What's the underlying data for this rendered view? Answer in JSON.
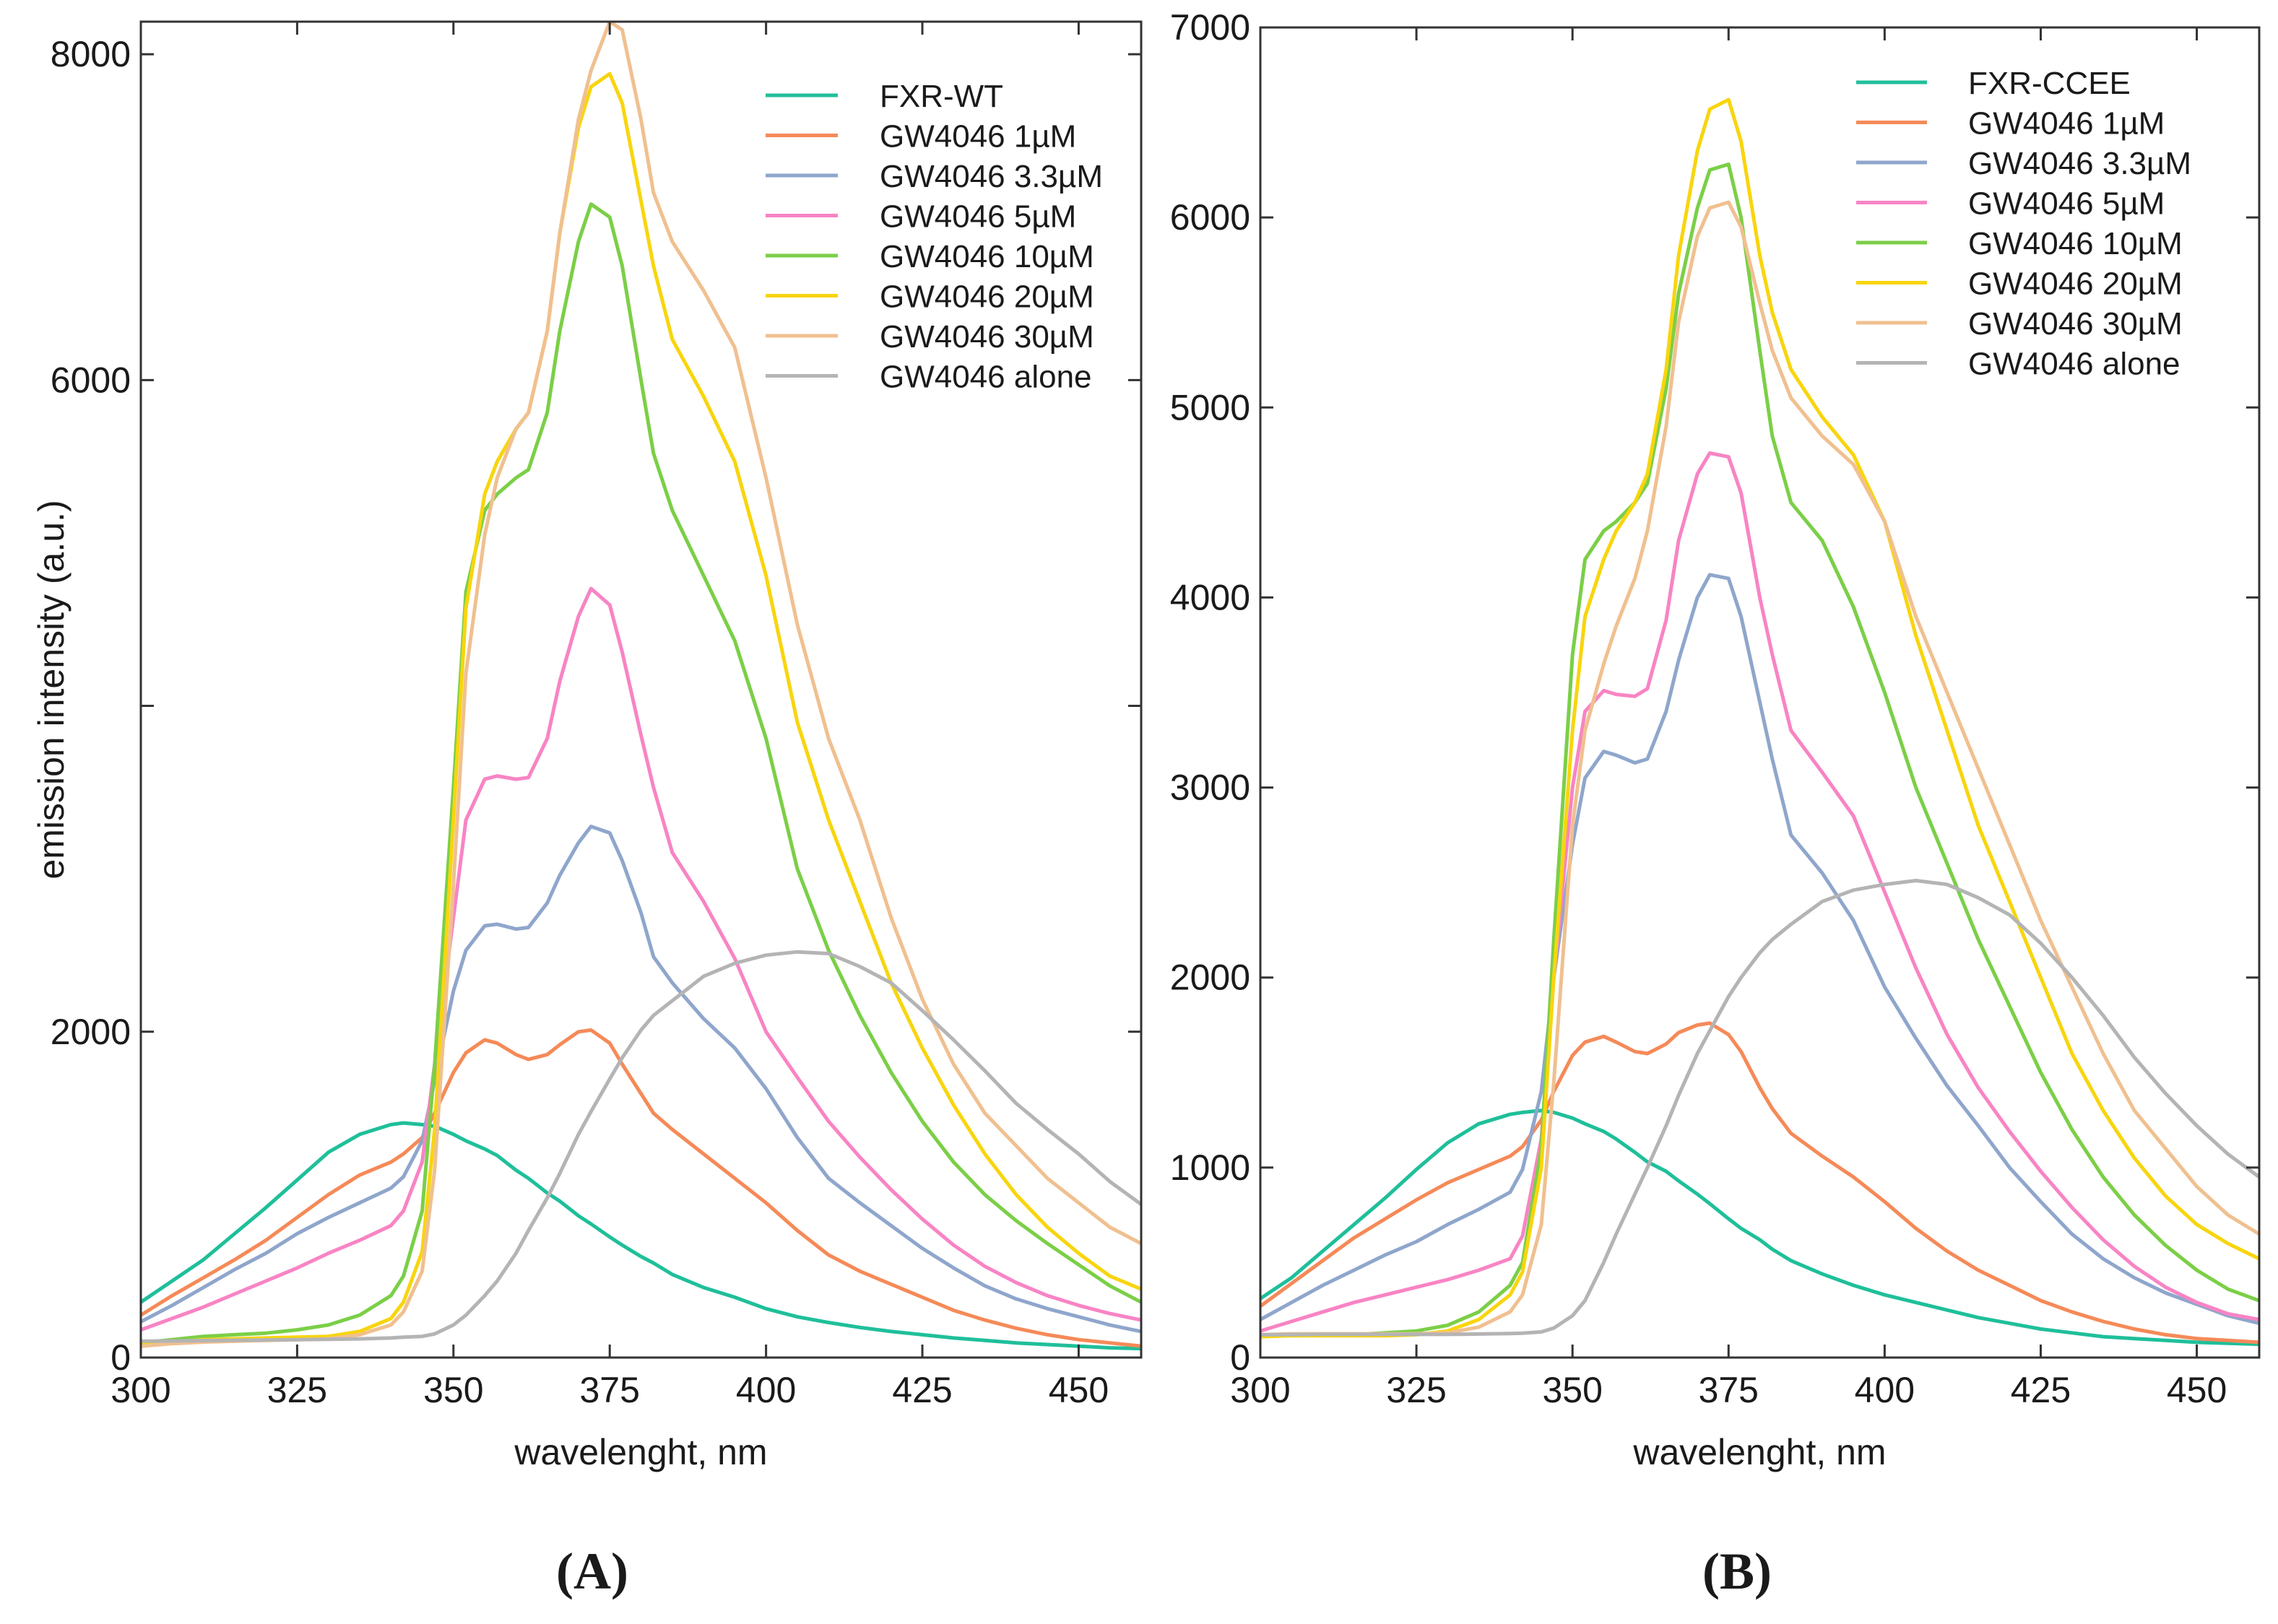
{
  "figure": {
    "panel_a_label": "A",
    "panel_b_label": "B"
  },
  "chart_data": [
    {
      "type": "line",
      "panel": "A",
      "xlabel": "wavelenght, nm",
      "ylabel": "emission intensity (a.u.)",
      "xlim": [
        300,
        460
      ],
      "ylim": [
        0,
        8200
      ],
      "xticks": [
        300,
        325,
        350,
        375,
        400,
        425,
        450
      ],
      "yticks_labeled": [
        0,
        2000,
        6000,
        8000
      ],
      "yticks_minor": [
        4000
      ],
      "legend_position": "top-right",
      "x": [
        300,
        305,
        310,
        315,
        320,
        325,
        330,
        335,
        340,
        342,
        345,
        347,
        350,
        352,
        355,
        357,
        360,
        362,
        365,
        367,
        370,
        372,
        375,
        377,
        380,
        382,
        385,
        390,
        395,
        400,
        405,
        410,
        415,
        420,
        425,
        430,
        435,
        440,
        445,
        450,
        455,
        460
      ],
      "series": [
        {
          "name": "FXR-WT",
          "color": "#1fbf9a",
          "values": [
            340,
            470,
            600,
            760,
            920,
            1090,
            1260,
            1370,
            1430,
            1440,
            1430,
            1420,
            1370,
            1330,
            1280,
            1240,
            1150,
            1100,
            1010,
            960,
            870,
            820,
            740,
            690,
            620,
            580,
            510,
            430,
            370,
            300,
            250,
            215,
            185,
            160,
            140,
            120,
            105,
            90,
            80,
            70,
            60,
            55
          ]
        },
        {
          "name": "GW4046 1µM",
          "color": "#f58a58",
          "values": [
            260,
            380,
            490,
            600,
            720,
            860,
            1000,
            1120,
            1200,
            1250,
            1350,
            1500,
            1750,
            1870,
            1950,
            1930,
            1860,
            1830,
            1860,
            1920,
            2000,
            2010,
            1930,
            1800,
            1620,
            1500,
            1400,
            1250,
            1100,
            950,
            780,
            630,
            530,
            450,
            370,
            290,
            230,
            180,
            140,
            110,
            90,
            70
          ]
        },
        {
          "name": "GW4046 3.3µM",
          "color": "#8fa6cc",
          "values": [
            220,
            320,
            430,
            540,
            640,
            760,
            860,
            950,
            1040,
            1110,
            1330,
            1700,
            2250,
            2500,
            2650,
            2660,
            2630,
            2640,
            2790,
            2960,
            3160,
            3260,
            3220,
            3050,
            2730,
            2460,
            2300,
            2080,
            1900,
            1650,
            1350,
            1100,
            950,
            810,
            670,
            550,
            440,
            360,
            300,
            250,
            200,
            160
          ]
        },
        {
          "name": "GW4046 5µM",
          "color": "#f884c4",
          "values": [
            170,
            240,
            310,
            390,
            470,
            550,
            640,
            720,
            810,
            900,
            1200,
            1800,
            2700,
            3300,
            3550,
            3570,
            3550,
            3560,
            3800,
            4150,
            4550,
            4720,
            4620,
            4330,
            3820,
            3500,
            3100,
            2800,
            2450,
            2000,
            1720,
            1450,
            1230,
            1030,
            850,
            690,
            560,
            460,
            380,
            320,
            270,
            230
          ]
        },
        {
          "name": "GW4046 10µM",
          "color": "#7bcf47",
          "values": [
            90,
            110,
            130,
            140,
            150,
            170,
            200,
            260,
            380,
            500,
            900,
            1800,
            3500,
            4700,
            5200,
            5300,
            5400,
            5450,
            5800,
            6300,
            6850,
            7080,
            7000,
            6700,
            6000,
            5550,
            5200,
            4800,
            4400,
            3800,
            3000,
            2500,
            2100,
            1750,
            1450,
            1200,
            1000,
            840,
            700,
            570,
            440,
            340
          ]
        },
        {
          "name": "GW4046 20µM",
          "color": "#f8d50e",
          "values": [
            80,
            95,
            110,
            115,
            120,
            125,
            130,
            160,
            240,
            340,
            650,
            1400,
            3300,
            4600,
            5300,
            5500,
            5700,
            5800,
            6300,
            6900,
            7550,
            7800,
            7880,
            7700,
            7100,
            6700,
            6250,
            5900,
            5500,
            4800,
            3900,
            3300,
            2800,
            2300,
            1900,
            1550,
            1250,
            1000,
            800,
            640,
            500,
            420
          ]
        },
        {
          "name": "GW4046 30µM",
          "color": "#f0c090",
          "values": [
            70,
            85,
            95,
            100,
            105,
            110,
            115,
            140,
            200,
            280,
            530,
            1150,
            2900,
            4200,
            5050,
            5400,
            5700,
            5800,
            6300,
            6900,
            7600,
            7900,
            8200,
            8150,
            7600,
            7150,
            6850,
            6550,
            6200,
            5400,
            4500,
            3800,
            3300,
            2700,
            2200,
            1800,
            1500,
            1300,
            1100,
            950,
            800,
            700
          ]
        },
        {
          "name": "GW4046 alone",
          "color": "#b4b4b4",
          "values": [
            100,
            102,
            104,
            106,
            108,
            110,
            112,
            115,
            120,
            125,
            130,
            145,
            200,
            260,
            380,
            470,
            640,
            780,
            980,
            1130,
            1370,
            1510,
            1710,
            1840,
            2010,
            2100,
            2190,
            2340,
            2420,
            2470,
            2490,
            2480,
            2400,
            2300,
            2130,
            1950,
            1760,
            1560,
            1400,
            1250,
            1080,
            940
          ]
        }
      ]
    },
    {
      "type": "line",
      "panel": "B",
      "xlabel": "wavelenght, nm",
      "ylabel": "",
      "xlim": [
        300,
        460
      ],
      "ylim": [
        0,
        7000
      ],
      "xticks": [
        300,
        325,
        350,
        375,
        400,
        425,
        450
      ],
      "yticks_labeled": [
        0,
        1000,
        2000,
        3000,
        4000,
        5000,
        6000,
        7000
      ],
      "legend_position": "top-right",
      "x": [
        300,
        305,
        310,
        315,
        320,
        325,
        330,
        335,
        340,
        342,
        345,
        347,
        350,
        352,
        355,
        357,
        360,
        362,
        365,
        367,
        370,
        372,
        375,
        377,
        380,
        382,
        385,
        390,
        395,
        400,
        405,
        410,
        415,
        420,
        425,
        430,
        435,
        440,
        445,
        450,
        455,
        460
      ],
      "series": [
        {
          "name": "FXR-CCEE",
          "color": "#1fbf9a",
          "values": [
            310,
            420,
            560,
            700,
            840,
            990,
            1130,
            1230,
            1280,
            1290,
            1300,
            1290,
            1260,
            1230,
            1190,
            1150,
            1080,
            1030,
            980,
            930,
            860,
            810,
            730,
            680,
            620,
            570,
            510,
            440,
            380,
            330,
            290,
            250,
            210,
            180,
            150,
            130,
            110,
            100,
            90,
            80,
            75,
            70
          ]
        },
        {
          "name": "GW4046 1µM",
          "color": "#f58a58",
          "values": [
            270,
            390,
            510,
            630,
            730,
            830,
            920,
            990,
            1060,
            1110,
            1250,
            1400,
            1590,
            1660,
            1690,
            1660,
            1610,
            1600,
            1650,
            1710,
            1750,
            1760,
            1700,
            1610,
            1420,
            1310,
            1180,
            1060,
            950,
            820,
            680,
            560,
            460,
            380,
            300,
            240,
            190,
            150,
            120,
            100,
            90,
            80
          ]
        },
        {
          "name": "GW4046 3.3µM",
          "color": "#8fa6cc",
          "values": [
            200,
            290,
            380,
            460,
            540,
            610,
            700,
            780,
            870,
            990,
            1400,
            2000,
            2700,
            3050,
            3190,
            3170,
            3130,
            3150,
            3400,
            3670,
            4000,
            4120,
            4100,
            3900,
            3450,
            3150,
            2750,
            2550,
            2300,
            1950,
            1680,
            1430,
            1220,
            1000,
            820,
            650,
            520,
            420,
            340,
            280,
            220,
            180
          ]
        },
        {
          "name": "GW4046 5µM",
          "color": "#f884c4",
          "values": [
            140,
            190,
            240,
            290,
            330,
            370,
            410,
            460,
            520,
            640,
            1150,
            2000,
            3000,
            3400,
            3510,
            3490,
            3480,
            3520,
            3880,
            4300,
            4650,
            4760,
            4740,
            4550,
            4000,
            3700,
            3300,
            3080,
            2850,
            2450,
            2050,
            1700,
            1420,
            1190,
            980,
            790,
            620,
            480,
            370,
            290,
            230,
            200
          ]
        },
        {
          "name": "GW4046 10µM",
          "color": "#7bcf47",
          "values": [
            110,
            120,
            120,
            120,
            130,
            140,
            170,
            240,
            380,
            500,
            1100,
            2200,
            3700,
            4200,
            4350,
            4400,
            4500,
            4600,
            5100,
            5600,
            6050,
            6250,
            6280,
            6000,
            5300,
            4850,
            4500,
            4300,
            3950,
            3500,
            3000,
            2600,
            2200,
            1850,
            1500,
            1200,
            950,
            750,
            590,
            460,
            360,
            300
          ]
        },
        {
          "name": "GW4046 20µM",
          "color": "#f8d50e",
          "values": [
            110,
            115,
            115,
            115,
            115,
            120,
            140,
            200,
            330,
            450,
            1000,
            2000,
            3300,
            3900,
            4200,
            4350,
            4500,
            4650,
            5200,
            5800,
            6350,
            6570,
            6620,
            6400,
            5800,
            5500,
            5200,
            4950,
            4750,
            4400,
            3800,
            3300,
            2800,
            2400,
            2000,
            1600,
            1300,
            1050,
            850,
            700,
            600,
            520
          ]
        },
        {
          "name": "GW4046 30µM",
          "color": "#f0c090",
          "values": [
            120,
            125,
            125,
            125,
            125,
            125,
            130,
            160,
            240,
            330,
            700,
            1450,
            2800,
            3300,
            3650,
            3850,
            4100,
            4350,
            4900,
            5450,
            5900,
            6050,
            6080,
            5950,
            5550,
            5300,
            5050,
            4850,
            4700,
            4400,
            3900,
            3500,
            3100,
            2700,
            2300,
            1950,
            1600,
            1300,
            1100,
            900,
            750,
            650
          ]
        },
        {
          "name": "GW4046 alone",
          "color": "#b4b4b4",
          "values": [
            120,
            121,
            122,
            122,
            122,
            122,
            122,
            124,
            126,
            128,
            135,
            155,
            220,
            300,
            500,
            650,
            860,
            1000,
            1220,
            1380,
            1600,
            1720,
            1900,
            2000,
            2130,
            2200,
            2280,
            2400,
            2460,
            2490,
            2510,
            2490,
            2420,
            2330,
            2180,
            2000,
            1800,
            1580,
            1390,
            1220,
            1070,
            950
          ]
        }
      ]
    }
  ]
}
